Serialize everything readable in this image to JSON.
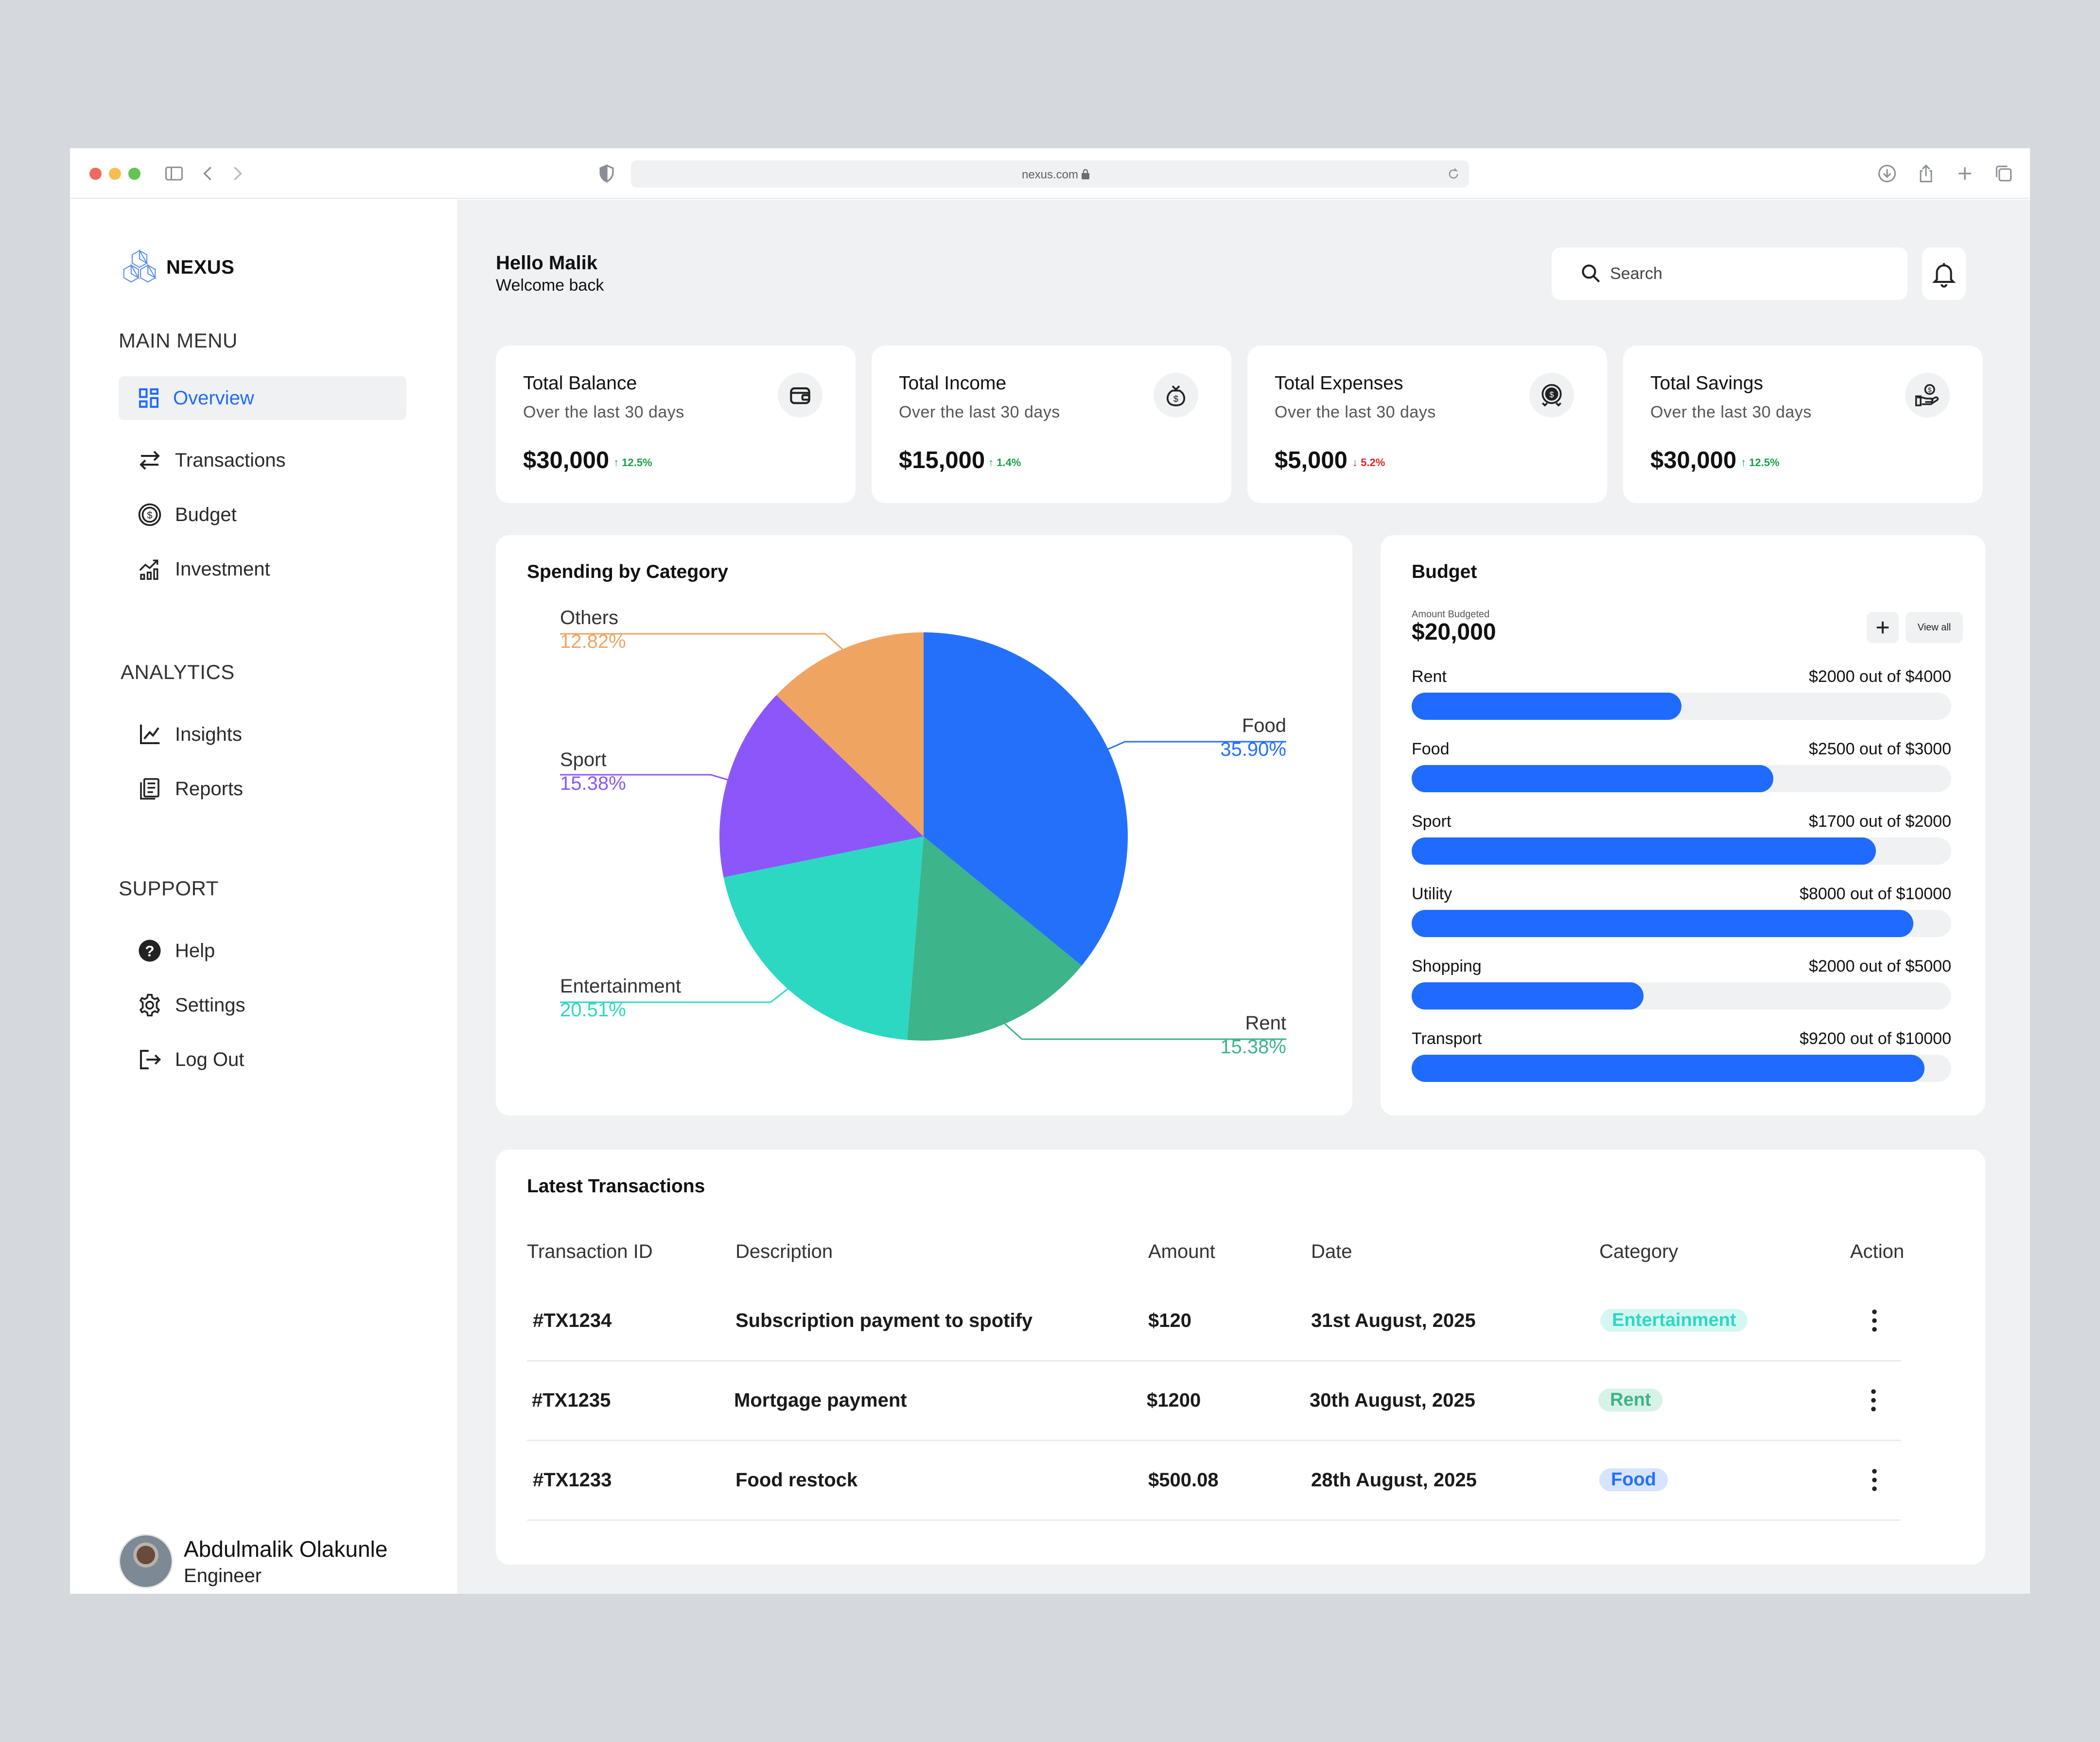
{
  "browser": {
    "url": "nexus.com"
  },
  "sidebar": {
    "logo": "NEXUS",
    "main_menu_title": "MAIN MENU",
    "main_menu": [
      {
        "label": "Overview",
        "icon": "grid-icon",
        "active": true
      },
      {
        "label": "Transactions",
        "icon": "arrows-swap-icon"
      },
      {
        "label": "Budget",
        "icon": "dollar-coin-icon"
      },
      {
        "label": "Investment",
        "icon": "chart-growth-icon"
      }
    ],
    "analytics_title": "ANALYTICS",
    "analytics": [
      {
        "label": "Insights",
        "icon": "line-chart-icon"
      },
      {
        "label": "Reports",
        "icon": "reports-icon"
      }
    ],
    "support_title": "SUPPORT",
    "support": [
      {
        "label": "Help",
        "icon": "help-icon"
      },
      {
        "label": "Settings",
        "icon": "gear-icon"
      },
      {
        "label": "Log Out",
        "icon": "logout-icon"
      }
    ],
    "user": {
      "name": "Abdulmalik Olakunle",
      "role": "Engineer"
    }
  },
  "header": {
    "greeting": "Hello Malik",
    "subgreeting": "Welcome back",
    "search_placeholder": "Search"
  },
  "stats": [
    {
      "title": "Total Balance",
      "subtitle": "Over the last 30 days",
      "value": "$30,000",
      "change": "12.5%",
      "direction": "up",
      "icon": "wallet-icon"
    },
    {
      "title": "Total Income",
      "subtitle": "Over the last 30 days",
      "value": "$15,000",
      "change": "1.4%",
      "direction": "up",
      "icon": "money-bag-icon"
    },
    {
      "title": "Total Expenses",
      "subtitle": "Over the last 30 days",
      "value": "$5,000",
      "change": "5.2%",
      "direction": "down",
      "icon": "coin-expense-icon"
    },
    {
      "title": "Total Savings",
      "subtitle": "Over the last 30 days",
      "value": "$30,000",
      "change": "12.5%",
      "direction": "up",
      "icon": "hand-dollar-icon"
    }
  ],
  "spending": {
    "title": "Spending by Category"
  },
  "chart_data": {
    "type": "pie",
    "title": "Spending by Category",
    "slices": [
      {
        "label": "Food",
        "value": 35.9,
        "display": "35.90%",
        "color": "#2370fb"
      },
      {
        "label": "Rent",
        "value": 15.38,
        "display": "15.38%",
        "color": "#3db48a"
      },
      {
        "label": "Entertainment",
        "value": 20.51,
        "display": "20.51%",
        "color": "#2dd8c2"
      },
      {
        "label": "Sport",
        "value": 15.38,
        "display": "15.38%",
        "color": "#8b57fb"
      },
      {
        "label": "Others",
        "value": 12.82,
        "display": "12.82%",
        "color": "#f0a462"
      }
    ]
  },
  "budget": {
    "title": "Budget",
    "amount_label": "Amount Budgeted",
    "amount": "$20,000",
    "view_all": "View all",
    "items": [
      {
        "name": "Rent",
        "amount": "$2000 out of $4000",
        "progress": 0.5
      },
      {
        "name": "Food",
        "amount": "$2500 out of $3000",
        "progress": 0.67
      },
      {
        "name": "Sport",
        "amount": "$1700 out of $2000",
        "progress": 0.86
      },
      {
        "name": "Utility",
        "amount": "$8000 out of $10000",
        "progress": 0.93
      },
      {
        "name": "Shopping",
        "amount": "$2000 out of $5000",
        "progress": 0.43
      },
      {
        "name": "Transport",
        "amount": "$9200 out of $10000",
        "progress": 0.95
      }
    ]
  },
  "transactions": {
    "title": "Latest Transactions",
    "columns": [
      "Transaction ID",
      "Description",
      "Amount",
      "Date",
      "Category",
      "Action"
    ],
    "rows": [
      {
        "id": "#TX1234",
        "description": "Subscription payment to spotify",
        "amount": "$120",
        "date": "31st August, 2025",
        "category": "Entertainment",
        "cat_color": "#2dd8c2",
        "cat_bg": "#d5f7f2"
      },
      {
        "id": "#TX1235",
        "description": "Mortgage payment",
        "amount": "$1200",
        "date": "30th August, 2025",
        "category": "Rent",
        "cat_color": "#3db48a",
        "cat_bg": "#d7f2e6"
      },
      {
        "id": "#TX1233",
        "description": "Food restock",
        "amount": "$500.08",
        "date": "28th August, 2025",
        "category": "Food",
        "cat_color": "#2370fb",
        "cat_bg": "#d6e4fd"
      }
    ]
  }
}
